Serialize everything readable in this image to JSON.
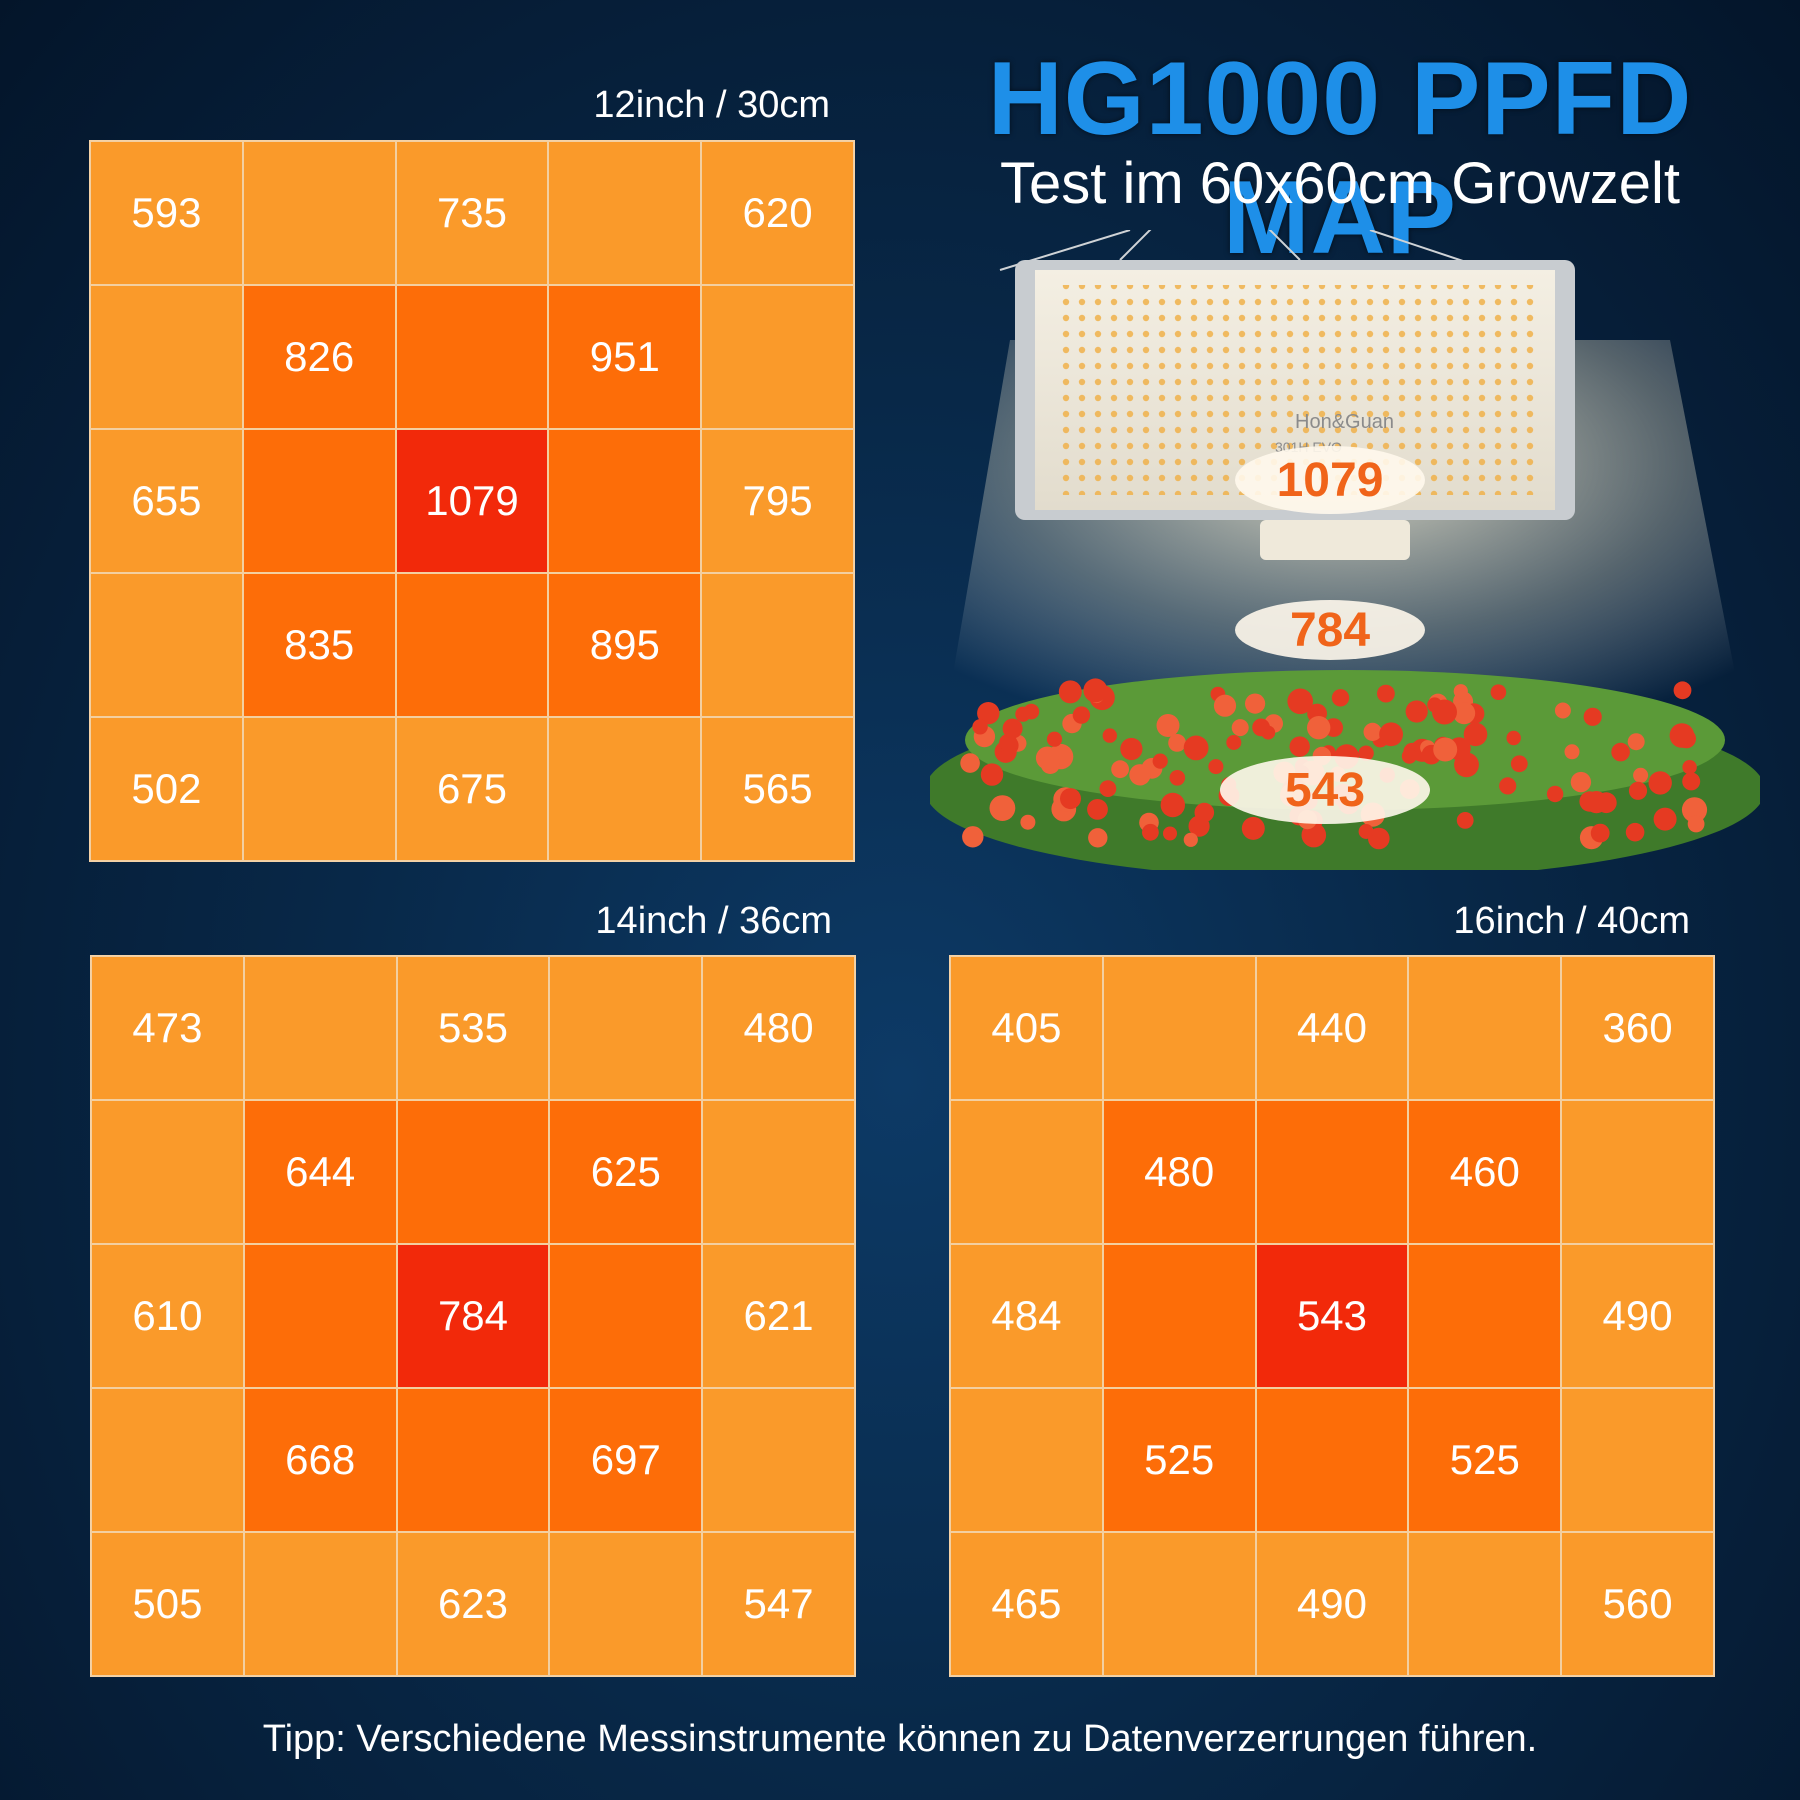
{
  "title": "HG1000 PPFD MAP",
  "subtitle": "Test im 60x60cm Growzelt",
  "brand": "Hon&Guan",
  "model": "301H EVO",
  "center_values": [
    "1079",
    "784",
    "543"
  ],
  "grids": [
    {
      "label": "12inch / 30cm",
      "rows": [
        [
          "593",
          "",
          "735",
          "",
          "620"
        ],
        [
          "",
          "826",
          "",
          "951",
          ""
        ],
        [
          "655",
          "",
          "1079",
          "",
          "795"
        ],
        [
          "",
          "835",
          "",
          "895",
          ""
        ],
        [
          "502",
          "",
          "675",
          "",
          "565"
        ]
      ]
    },
    {
      "label": "14inch / 36cm",
      "rows": [
        [
          "473",
          "",
          "535",
          "",
          "480"
        ],
        [
          "",
          "644",
          "",
          "625",
          ""
        ],
        [
          "610",
          "",
          "784",
          "",
          "621"
        ],
        [
          "",
          "668",
          "",
          "697",
          ""
        ],
        [
          "505",
          "",
          "623",
          "",
          "547"
        ]
      ]
    },
    {
      "label": "16inch / 40cm",
      "rows": [
        [
          "405",
          "",
          "440",
          "",
          "360"
        ],
        [
          "",
          "480",
          "",
          "460",
          ""
        ],
        [
          "484",
          "",
          "543",
          "",
          "490"
        ],
        [
          "",
          "525",
          "",
          "525",
          ""
        ],
        [
          "465",
          "",
          "490",
          "",
          "560"
        ]
      ]
    }
  ],
  "tip": "Tipp: Verschiedene Messinstrumente können zu Datenverzerrungen führen.",
  "colors": {
    "title_blue": "#1e8fe8",
    "cell_light": "#fa9a2a",
    "cell_mid": "#fd6d08",
    "cell_hot": "#f2290a"
  }
}
